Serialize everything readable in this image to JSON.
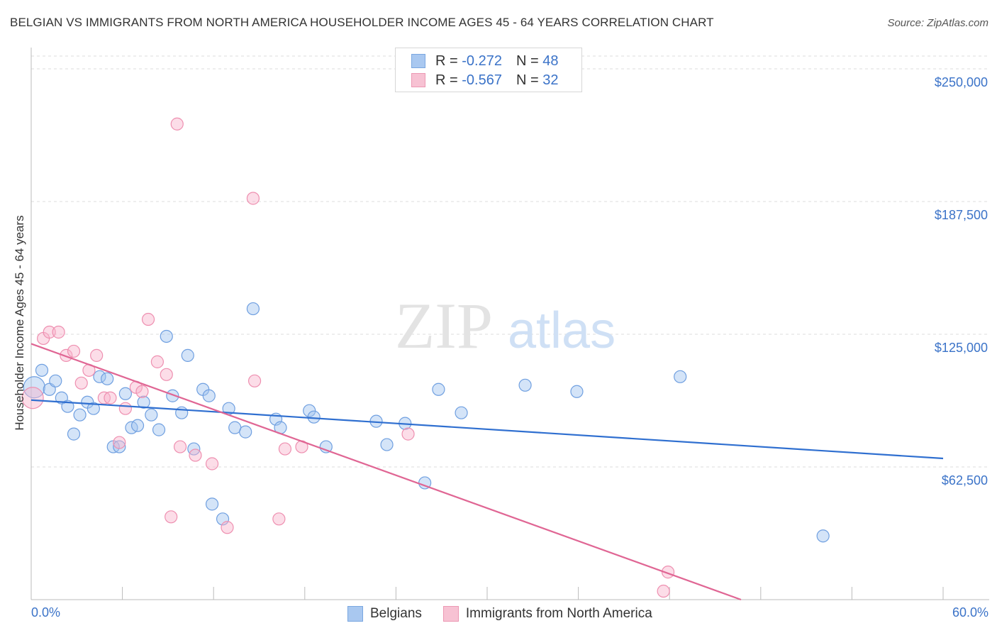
{
  "title": "BELGIAN VS IMMIGRANTS FROM NORTH AMERICA HOUSEHOLDER INCOME AGES 45 - 64 YEARS CORRELATION CHART",
  "source": "Source: ZipAtlas.com",
  "watermark": {
    "zip": "ZIP",
    "atlas": "atlas"
  },
  "legend_top": [
    {
      "r_label": "R =",
      "r_value": "-0.272",
      "n_label": "N =",
      "n_value": "48",
      "color": "#a9c8f0",
      "border": "#7aa7e0"
    },
    {
      "r_label": "R =",
      "r_value": "-0.567",
      "n_label": "N =",
      "n_value": "32",
      "color": "#f7c2d3",
      "border": "#ec98b3"
    }
  ],
  "legend_bottom": [
    "Belgians",
    "Immigrants from North America"
  ],
  "colors": {
    "blue_line": "#2f6fd0",
    "pink_line": "#e06694",
    "blue_fill": "rgba(160,195,240,0.45)",
    "blue_stroke": "#6f9fe0",
    "pink_fill": "rgba(248,180,205,0.45)",
    "pink_stroke": "#ee8fb0",
    "tick_text": "#3b73c8",
    "grid": "#dddddd"
  },
  "chart_data": {
    "type": "scatter",
    "ylabel": "Householder Income Ages 45 - 64 years",
    "xlim": [
      0,
      60
    ],
    "ylim": [
      0,
      256000
    ],
    "y_ticks": [
      {
        "value": 62500,
        "label": "$62,500"
      },
      {
        "value": 125000,
        "label": "$125,000"
      },
      {
        "value": 187500,
        "label": "$187,500"
      },
      {
        "value": 250000,
        "label": "$250,000"
      }
    ],
    "x_tick_labels": {
      "left": "0.0%",
      "right": "60.0%"
    },
    "series": [
      {
        "name": "Belgians",
        "points": [
          [
            0.2,
            100000
          ],
          [
            0.7,
            108000
          ],
          [
            1.2,
            99000
          ],
          [
            1.6,
            103000
          ],
          [
            2.0,
            95000
          ],
          [
            2.4,
            91000
          ],
          [
            2.8,
            78000
          ],
          [
            3.2,
            87000
          ],
          [
            3.7,
            93000
          ],
          [
            4.1,
            90000
          ],
          [
            4.5,
            105000
          ],
          [
            5.0,
            104000
          ],
          [
            5.4,
            72000
          ],
          [
            5.8,
            72000
          ],
          [
            6.2,
            97000
          ],
          [
            6.6,
            81000
          ],
          [
            7.0,
            82000
          ],
          [
            7.4,
            93000
          ],
          [
            7.9,
            87000
          ],
          [
            8.4,
            80000
          ],
          [
            8.9,
            124000
          ],
          [
            9.3,
            96000
          ],
          [
            9.9,
            88000
          ],
          [
            10.3,
            115000
          ],
          [
            10.7,
            71000
          ],
          [
            11.3,
            99000
          ],
          [
            11.7,
            96000
          ],
          [
            11.9,
            45000
          ],
          [
            12.6,
            38000
          ],
          [
            13.0,
            90000
          ],
          [
            13.4,
            81000
          ],
          [
            14.1,
            79000
          ],
          [
            14.6,
            137000
          ],
          [
            16.1,
            85000
          ],
          [
            16.4,
            81000
          ],
          [
            18.3,
            89000
          ],
          [
            18.6,
            86000
          ],
          [
            19.4,
            72000
          ],
          [
            22.7,
            84000
          ],
          [
            23.4,
            73000
          ],
          [
            24.6,
            83000
          ],
          [
            25.9,
            55000
          ],
          [
            26.8,
            99000
          ],
          [
            28.3,
            88000
          ],
          [
            32.5,
            101000
          ],
          [
            35.9,
            98000
          ],
          [
            42.7,
            105000
          ],
          [
            52.1,
            30000
          ]
        ]
      },
      {
        "name": "Immigrants from North America",
        "points": [
          [
            0.1,
            95000
          ],
          [
            0.8,
            123000
          ],
          [
            1.2,
            126000
          ],
          [
            1.8,
            126000
          ],
          [
            2.3,
            115000
          ],
          [
            2.8,
            117000
          ],
          [
            3.3,
            102000
          ],
          [
            3.8,
            108000
          ],
          [
            4.3,
            115000
          ],
          [
            4.8,
            95000
          ],
          [
            5.2,
            95000
          ],
          [
            5.8,
            74000
          ],
          [
            6.2,
            90000
          ],
          [
            6.9,
            100000
          ],
          [
            7.3,
            98000
          ],
          [
            7.7,
            132000
          ],
          [
            8.3,
            112000
          ],
          [
            8.9,
            106000
          ],
          [
            9.2,
            39000
          ],
          [
            9.6,
            224000
          ],
          [
            9.8,
            72000
          ],
          [
            10.8,
            68000
          ],
          [
            11.9,
            64000
          ],
          [
            12.9,
            34000
          ],
          [
            14.7,
            103000
          ],
          [
            14.6,
            189000
          ],
          [
            16.3,
            38000
          ],
          [
            16.7,
            71000
          ],
          [
            17.8,
            72000
          ],
          [
            24.8,
            78000
          ],
          [
            41.6,
            4000
          ],
          [
            41.9,
            13000
          ]
        ]
      }
    ],
    "trendlines": [
      {
        "series": "Belgians",
        "x": [
          0,
          60
        ],
        "y": [
          94000,
          66500
        ]
      },
      {
        "series": "Immigrants from North America",
        "x": [
          0,
          46.7
        ],
        "y": [
          120500,
          0
        ]
      }
    ]
  }
}
